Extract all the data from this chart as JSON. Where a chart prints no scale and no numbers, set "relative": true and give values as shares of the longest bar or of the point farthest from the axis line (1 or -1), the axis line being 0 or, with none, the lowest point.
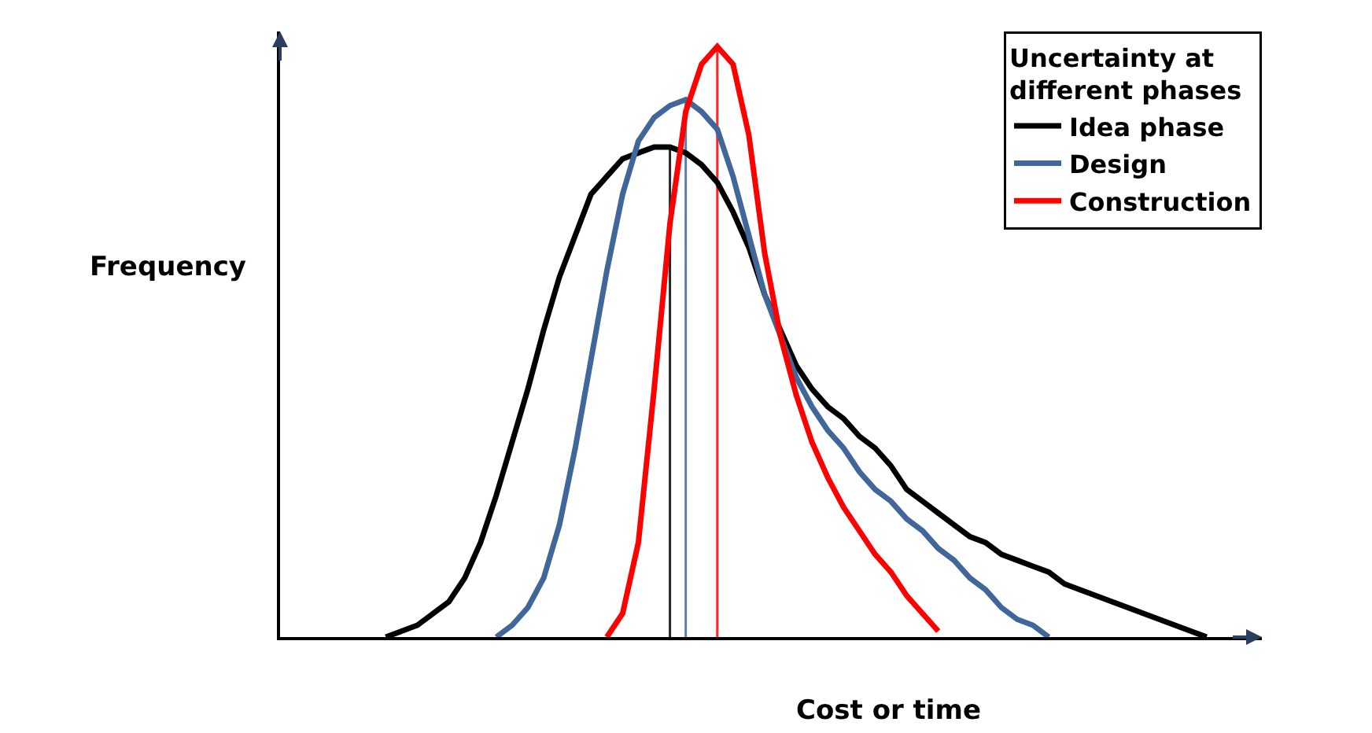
{
  "chart_data": {
    "type": "line",
    "relative": true,
    "xlabel": "Cost or time",
    "ylabel": "Frequency",
    "legend_title": "Uncertainty at different phases",
    "legend": "top right",
    "tick_labels": false,
    "categories": [
      null,
      null,
      null,
      null,
      null,
      null,
      null,
      null,
      null,
      null,
      null,
      null,
      null,
      null,
      null,
      null,
      null,
      null,
      null,
      null,
      null,
      null,
      null,
      null,
      null,
      null,
      null,
      null,
      null,
      null,
      null,
      null,
      null,
      null,
      null,
      null,
      null,
      null,
      null,
      null,
      null,
      null,
      null,
      null,
      null,
      null,
      null,
      null,
      null,
      null,
      null,
      null,
      null
    ],
    "series": [
      {
        "name": "Idea phase",
        "color": "#000000",
        "values": [
          0,
          0.01,
          0.02,
          0.04,
          0.06,
          0.1,
          0.16,
          0.24,
          0.33,
          0.42,
          0.52,
          0.61,
          0.68,
          0.75,
          0.78,
          0.81,
          0.82,
          0.83,
          0.83,
          0.82,
          0.8,
          0.77,
          0.72,
          0.66,
          0.58,
          0.52,
          0.46,
          0.42,
          0.39,
          0.37,
          0.34,
          0.32,
          0.29,
          0.25,
          0.23,
          0.21,
          0.19,
          0.17,
          0.16,
          0.14,
          0.13,
          0.12,
          0.11,
          0.09,
          0.08,
          0.07,
          0.06,
          0.05,
          0.04,
          0.03,
          0.02,
          0.01,
          0
        ]
      },
      {
        "name": "Design",
        "color": "#41679a",
        "values": [
          null,
          null,
          null,
          null,
          null,
          null,
          null,
          0,
          0.02,
          0.05,
          0.1,
          0.19,
          0.32,
          0.47,
          0.62,
          0.75,
          0.84,
          0.88,
          0.9,
          0.91,
          0.89,
          0.86,
          0.78,
          0.68,
          0.58,
          0.51,
          0.44,
          0.39,
          0.35,
          0.32,
          0.28,
          0.25,
          0.23,
          0.2,
          0.18,
          0.15,
          0.13,
          0.1,
          0.08,
          0.05,
          0.03,
          0.02,
          0,
          null,
          null,
          null,
          null,
          null,
          null,
          null,
          null,
          null,
          null
        ]
      },
      {
        "name": "Construction",
        "color": "#ff0000",
        "values": [
          null,
          null,
          null,
          null,
          null,
          null,
          null,
          null,
          null,
          null,
          null,
          null,
          null,
          null,
          0,
          0.04,
          0.16,
          0.42,
          0.7,
          0.89,
          0.97,
          1.0,
          0.97,
          0.85,
          0.65,
          0.51,
          0.41,
          0.33,
          0.27,
          0.22,
          0.18,
          0.14,
          0.11,
          0.07,
          0.04,
          0.01,
          null,
          null,
          null,
          null,
          null,
          null,
          null,
          null,
          null,
          null,
          null,
          null,
          null,
          null,
          null,
          null,
          null
        ]
      }
    ]
  }
}
